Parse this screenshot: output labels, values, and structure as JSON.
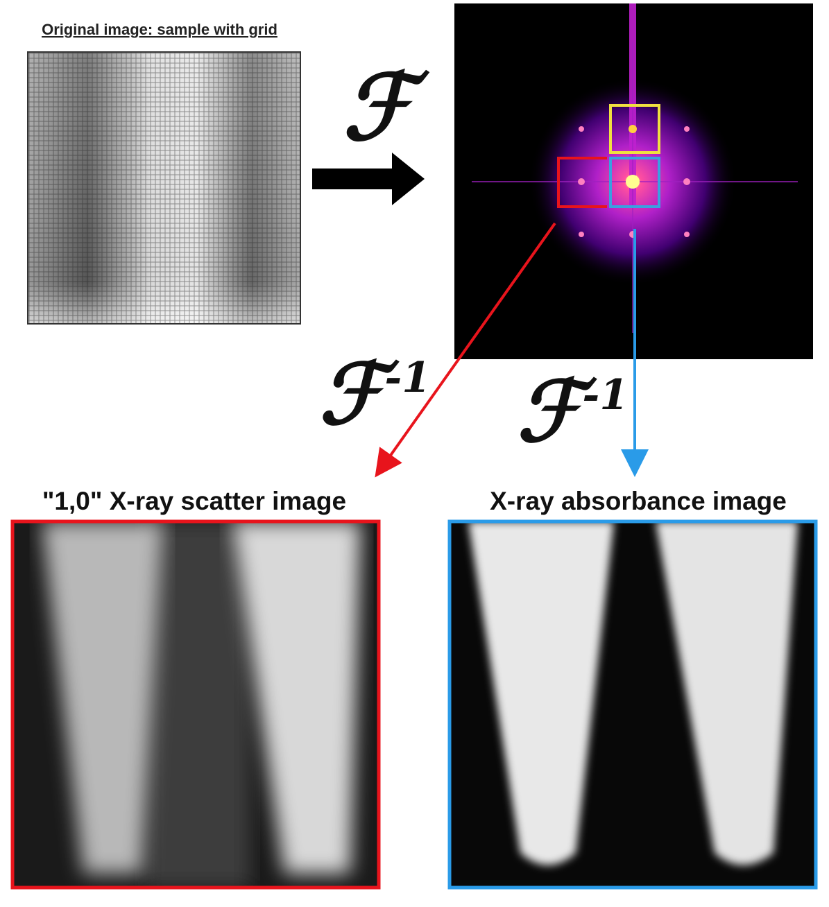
{
  "original": {
    "title": "Original image: sample with grid"
  },
  "forward_transform": {
    "symbol": "ℱ"
  },
  "inverse_transform_left": {
    "symbol": "ℱ",
    "superscript": "-1"
  },
  "inverse_transform_right": {
    "symbol": "ℱ",
    "superscript": "-1"
  },
  "scatter_image": {
    "title": "\"1,0\" X-ray scatter image"
  },
  "absorbance_image": {
    "title": "X-ray absorbance image"
  }
}
